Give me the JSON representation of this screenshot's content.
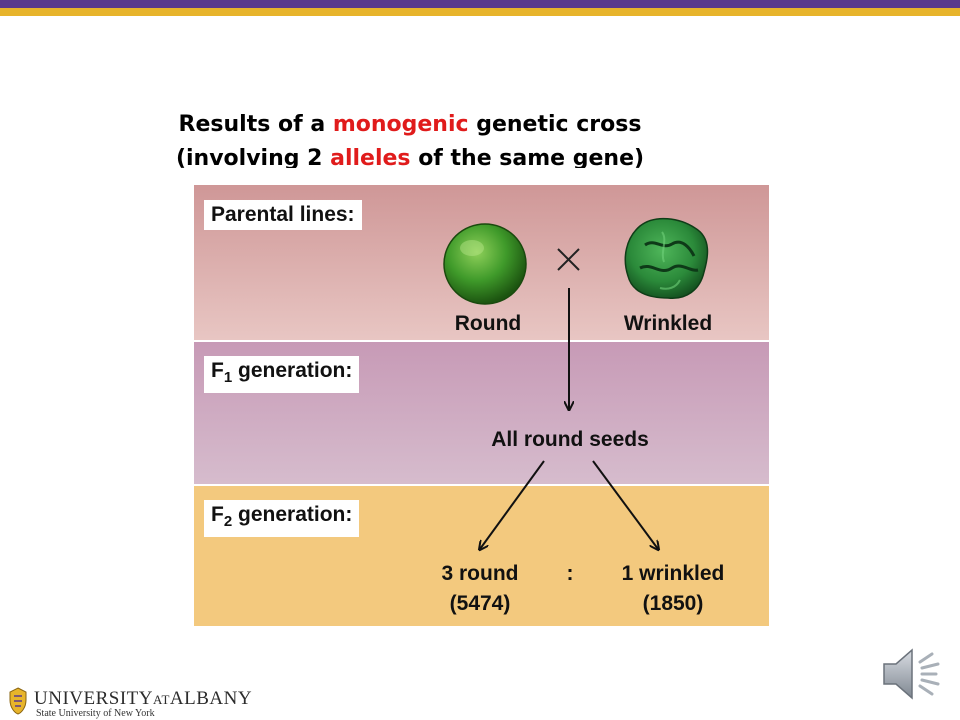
{
  "title": {
    "line1_pre": "Results of a ",
    "line1_red": "monogenic",
    "line1_post": " genetic cross",
    "line2_pre": "(involving 2 ",
    "line2_red": "alleles",
    "line2_post": " of the same gene)"
  },
  "panels": {
    "parental": {
      "label": "Parental lines:",
      "round_label": "Round",
      "wrinkled_label": "Wrinkled",
      "cross_symbol": "×"
    },
    "f1": {
      "label_f": "F",
      "label_sub": "1",
      "label_rest": " generation:",
      "result": "All round seeds"
    },
    "f2": {
      "label_f": "F",
      "label_sub": "2",
      "label_rest": " generation:",
      "round_count": "3 round",
      "round_number": "(5474)",
      "ratio_sep": ":",
      "wrinkled_count": "1 wrinkled",
      "wrinkled_number": "(1850)"
    }
  },
  "footer": {
    "university_main": "UNIVERSITY",
    "university_at": "AT",
    "university_albany": "ALBANY",
    "university_sub": "State University of New York"
  },
  "icons": {
    "speaker": "speaker-icon",
    "logo": "minerva-logo-icon"
  },
  "colors": {
    "top_bar_purple": "#5a3a8c",
    "top_bar_gold": "#e7b42b",
    "highlight_red": "#e01b1b",
    "parental_panel": "#d9a9a7",
    "f1_panel": "#cdaec3",
    "f2_panel": "#f3c97e",
    "pea_green": "#3f9a2a"
  }
}
